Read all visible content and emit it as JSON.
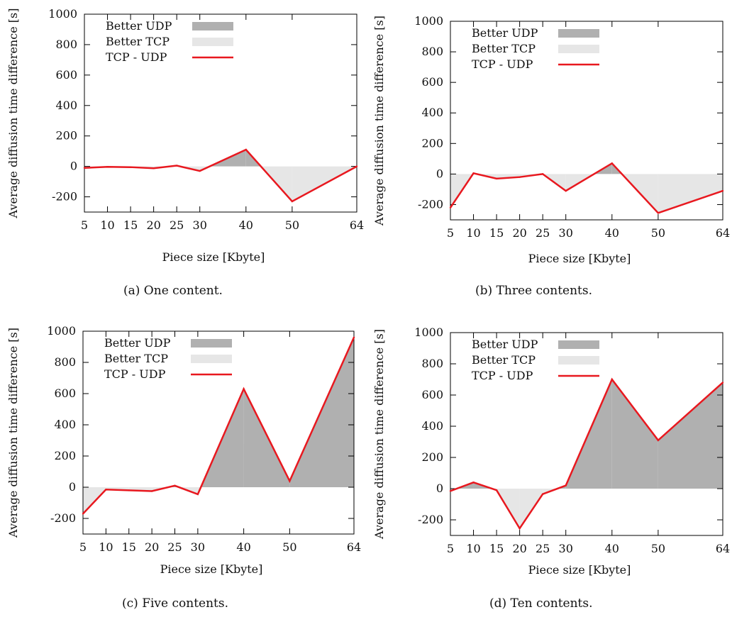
{
  "chart_data": [
    {
      "type": "area",
      "caption": "(a) One content.",
      "xlabel": "Piece size [Kbyte]",
      "ylabel": "Average diffusion time difference [s]",
      "x_ticks": [
        5,
        10,
        15,
        20,
        25,
        30,
        40,
        50,
        64
      ],
      "y_ticks": [
        -200,
        0,
        200,
        400,
        600,
        800,
        1000
      ],
      "ylim": [
        -300,
        1000
      ],
      "legend": [
        "Better UDP",
        "Better TCP",
        "TCP - UDP"
      ],
      "legend_position": "top-left",
      "series": [
        {
          "name": "TCP - UDP",
          "x": [
            5,
            10,
            15,
            20,
            25,
            30,
            40,
            50,
            64
          ],
          "y": [
            -10,
            -3,
            -5,
            -12,
            5,
            -30,
            110,
            -230,
            0
          ]
        }
      ]
    },
    {
      "type": "area",
      "caption": "(b) Three contents.",
      "xlabel": "Piece size [Kbyte]",
      "ylabel": "Average diffusion time difference [s]",
      "x_ticks": [
        5,
        10,
        15,
        20,
        25,
        30,
        40,
        50,
        64
      ],
      "y_ticks": [
        -200,
        0,
        200,
        400,
        600,
        800,
        1000
      ],
      "ylim": [
        -300,
        1000
      ],
      "legend": [
        "Better UDP",
        "Better TCP",
        "TCP - UDP"
      ],
      "legend_position": "top-left",
      "series": [
        {
          "name": "TCP - UDP",
          "x": [
            5,
            10,
            15,
            20,
            25,
            30,
            40,
            50,
            64
          ],
          "y": [
            -220,
            5,
            -30,
            -20,
            0,
            -110,
            70,
            -255,
            -110
          ]
        }
      ]
    },
    {
      "type": "area",
      "caption": "(c) Five contents.",
      "xlabel": "Piece size [Kbyte]",
      "ylabel": "Average diffusion time difference [s]",
      "x_ticks": [
        5,
        10,
        15,
        20,
        25,
        30,
        40,
        50,
        64
      ],
      "y_ticks": [
        -200,
        0,
        200,
        400,
        600,
        800,
        1000
      ],
      "ylim": [
        -300,
        1000
      ],
      "legend": [
        "Better UDP",
        "Better TCP",
        "TCP - UDP"
      ],
      "legend_position": "top-left",
      "series": [
        {
          "name": "TCP - UDP",
          "x": [
            5,
            10,
            15,
            20,
            25,
            30,
            40,
            50,
            64
          ],
          "y": [
            -170,
            -15,
            -20,
            -25,
            10,
            -45,
            630,
            40,
            960
          ]
        }
      ]
    },
    {
      "type": "area",
      "caption": "(d) Ten contents.",
      "xlabel": "Piece size [Kbyte]",
      "ylabel": "Average diffusion time difference [s]",
      "x_ticks": [
        5,
        10,
        15,
        20,
        25,
        30,
        40,
        50,
        64
      ],
      "y_ticks": [
        -200,
        0,
        200,
        400,
        600,
        800,
        1000
      ],
      "ylim": [
        -300,
        1000
      ],
      "legend": [
        "Better UDP",
        "Better TCP",
        "TCP - UDP"
      ],
      "legend_position": "top-left",
      "series": [
        {
          "name": "TCP - UDP",
          "x": [
            5,
            10,
            15,
            20,
            25,
            30,
            40,
            50,
            64
          ],
          "y": [
            -15,
            40,
            -10,
            -255,
            -35,
            20,
            700,
            310,
            680
          ]
        }
      ]
    }
  ],
  "colors": {
    "better_udp": "#b0b0b0",
    "better_tcp": "#e6e6e6",
    "line": "#e8181f"
  }
}
